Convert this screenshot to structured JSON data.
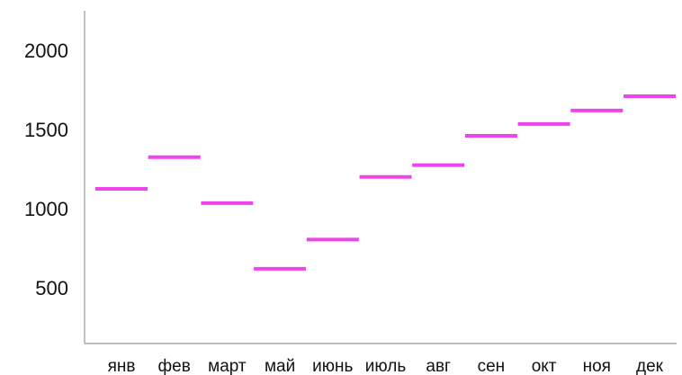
{
  "chart_data": {
    "type": "line",
    "categories": [
      "янв",
      "фев",
      "март",
      "май",
      "июнь",
      "июль",
      "авг",
      "сен",
      "окт",
      "ноя",
      "дек"
    ],
    "series": [
      {
        "values": [
          1125,
          1325,
          1035,
          620,
          805,
          1200,
          1275,
          1460,
          1535,
          1620,
          1710
        ]
      }
    ],
    "ylim": [
      250,
      2150
    ],
    "yticks": [
      500,
      1000,
      1500,
      2000
    ],
    "grid": false,
    "colors": {
      "series": "#ee44ee",
      "axis": "#999999",
      "text": "#111111"
    }
  }
}
